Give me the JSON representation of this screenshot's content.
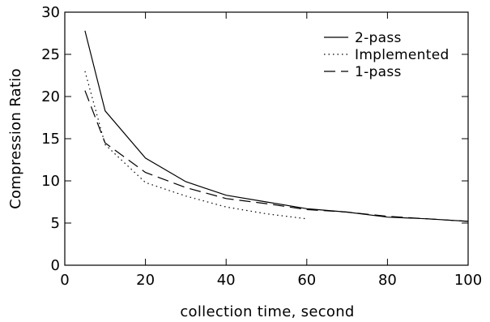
{
  "chart_data": {
    "type": "line",
    "title": "",
    "xlabel": "collection time, second",
    "ylabel": "Compression Ratio",
    "xlim": [
      0,
      100
    ],
    "ylim": [
      0,
      30
    ],
    "xticks": [
      0,
      20,
      40,
      60,
      80,
      100
    ],
    "yticks": [
      0,
      5,
      10,
      15,
      20,
      25,
      30
    ],
    "grid": false,
    "legend_position": "top-right",
    "series": [
      {
        "name": "2-pass",
        "style": "solid",
        "x": [
          5,
          10,
          20,
          30,
          40,
          50,
          60,
          70,
          80,
          90,
          100
        ],
        "y": [
          27.8,
          18.3,
          12.7,
          9.9,
          8.3,
          7.5,
          6.7,
          6.3,
          5.7,
          5.5,
          5.2
        ]
      },
      {
        "name": "Implemented",
        "style": "dotted",
        "x": [
          5,
          10,
          20,
          30,
          40,
          50,
          60
        ],
        "y": [
          23.0,
          14.3,
          9.8,
          8.2,
          6.9,
          6.1,
          5.5
        ]
      },
      {
        "name": "1-pass",
        "style": "dashed",
        "x": [
          5,
          10,
          20,
          30,
          40,
          50,
          60,
          70,
          80,
          90,
          100
        ],
        "y": [
          20.7,
          14.5,
          11.0,
          9.2,
          7.9,
          7.3,
          6.6,
          6.3,
          5.8,
          5.5,
          5.2
        ]
      }
    ]
  }
}
